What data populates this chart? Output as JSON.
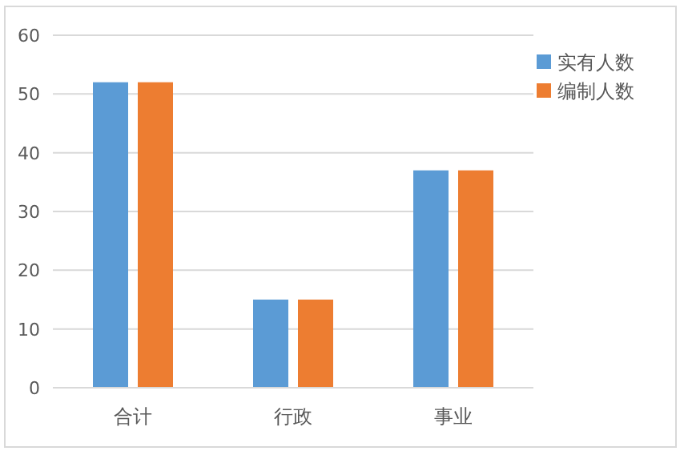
{
  "chart_data": {
    "type": "bar",
    "categories": [
      "合计",
      "行政",
      "事业"
    ],
    "series": [
      {
        "name": "实有人数",
        "color": "#5b9bd5",
        "values": [
          52,
          15,
          37
        ]
      },
      {
        "name": "编制人数",
        "color": "#ed7d31",
        "values": [
          52,
          15,
          37
        ]
      }
    ],
    "ylim": [
      0,
      60
    ],
    "yticks": [
      0,
      10,
      20,
      30,
      40,
      50,
      60
    ],
    "grid": "y",
    "legend": "right"
  }
}
